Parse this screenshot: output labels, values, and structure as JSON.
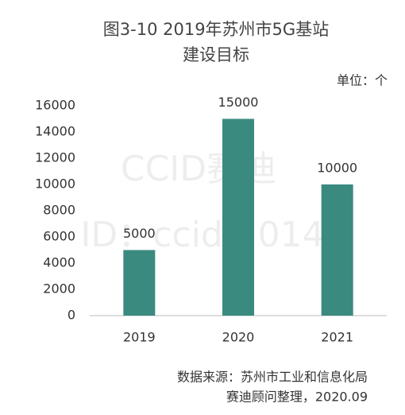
{
  "chart_data": {
    "type": "bar",
    "title_lines": [
      "图3-10  2019年苏州市5G基站",
      "建设目标"
    ],
    "unit": "单位：个",
    "categories": [
      "2019",
      "2020",
      "2021"
    ],
    "values": [
      5000,
      15000,
      10000
    ],
    "color": "#3a8a80",
    "ylim": [
      0,
      16000
    ],
    "yticks": [
      0,
      2000,
      4000,
      6000,
      8000,
      10000,
      12000,
      14000,
      16000
    ],
    "grid": false,
    "watermark": [
      "CCID赛迪",
      "ID：ccid-2014"
    ],
    "source_lines": [
      "数据来源：苏州市工业和信息化局",
      "赛迪顾问整理，2020.09"
    ]
  }
}
